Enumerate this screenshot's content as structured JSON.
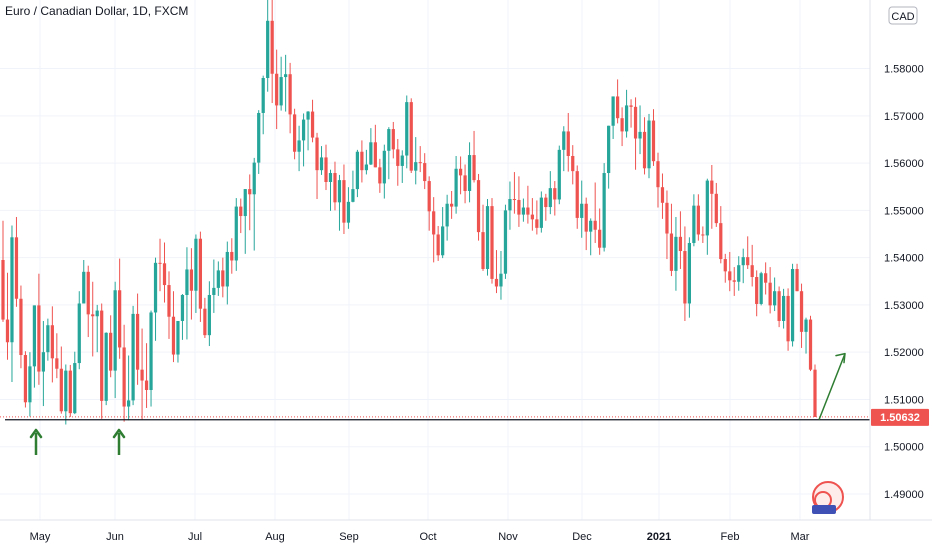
{
  "header": {
    "title": "Euro / Canadian Dollar, 1D, FXCM",
    "currency_badge": "CAD"
  },
  "colors": {
    "up": "#26a69a",
    "down": "#ef5350",
    "support": "#131722",
    "arrow": "#2e7d32",
    "price_tag": "#ef5350"
  },
  "price_tag": {
    "value": 1.50632,
    "label": "1.50632"
  },
  "chart_data": {
    "type": "candlestick",
    "title": "Euro / Canadian Dollar, 1D, FXCM",
    "ylim": [
      1.4845,
      1.5945
    ],
    "y_ticks": [
      "1.49000",
      "1.50000",
      "1.51000",
      "1.52000",
      "1.53000",
      "1.54000",
      "1.55000",
      "1.56000",
      "1.57000",
      "1.58000"
    ],
    "x_ticks": [
      "May",
      "Jun",
      "Jul",
      "Aug",
      "Sep",
      "Oct",
      "Nov",
      "Dec",
      "2021",
      "Feb",
      "Mar"
    ],
    "grid": true,
    "series": [
      {
        "values": [
          [
            1.5395,
            1.5478,
            1.5264,
            1.5269
          ],
          [
            1.5269,
            1.5368,
            1.5184,
            1.5221
          ],
          [
            1.5221,
            1.5468,
            1.5137,
            1.5443
          ],
          [
            1.5443,
            1.5486,
            1.5296,
            1.5313
          ],
          [
            1.5313,
            1.5341,
            1.5166,
            1.5194
          ],
          [
            1.5194,
            1.5202,
            1.5083,
            1.5094
          ],
          [
            1.5094,
            1.52,
            1.5064,
            1.517
          ],
          [
            1.517,
            1.5299,
            1.5125,
            1.5299
          ],
          [
            1.5299,
            1.5366,
            1.5131,
            1.5159
          ],
          [
            1.5159,
            1.5266,
            1.5086,
            1.52
          ],
          [
            1.52,
            1.5271,
            1.5182,
            1.5257
          ],
          [
            1.5257,
            1.5297,
            1.5136,
            1.5187
          ],
          [
            1.5187,
            1.524,
            1.5145,
            1.5165
          ],
          [
            1.5165,
            1.5212,
            1.507,
            1.5075
          ],
          [
            1.5075,
            1.5174,
            1.5047,
            1.5161
          ],
          [
            1.5161,
            1.5173,
            1.5063,
            1.5071
          ],
          [
            1.5071,
            1.5201,
            1.5069,
            1.5177
          ],
          [
            1.5177,
            1.5329,
            1.5164,
            1.5303
          ],
          [
            1.5303,
            1.5395,
            1.5303,
            1.537
          ],
          [
            1.537,
            1.5383,
            1.5232,
            1.528
          ],
          [
            1.528,
            1.5349,
            1.5191,
            1.5276
          ],
          [
            1.5276,
            1.53,
            1.52,
            1.5288
          ],
          [
            1.5288,
            1.5303,
            1.5059,
            1.5097
          ],
          [
            1.5097,
            1.5242,
            1.5088,
            1.5241
          ],
          [
            1.5241,
            1.5278,
            1.5147,
            1.5161
          ],
          [
            1.5161,
            1.5349,
            1.5103,
            1.5331
          ],
          [
            1.5331,
            1.5398,
            1.5186,
            1.521
          ],
          [
            1.521,
            1.5258,
            1.5053,
            1.5085
          ],
          [
            1.5085,
            1.5193,
            1.5056,
            1.5098
          ],
          [
            1.5098,
            1.5298,
            1.5088,
            1.5281
          ],
          [
            1.5281,
            1.5324,
            1.5131,
            1.5163
          ],
          [
            1.5163,
            1.525,
            1.5058,
            1.514
          ],
          [
            1.514,
            1.5219,
            1.5082,
            1.512
          ],
          [
            1.512,
            1.5288,
            1.5085,
            1.5284
          ],
          [
            1.5284,
            1.54,
            1.5224,
            1.5389
          ],
          [
            1.5389,
            1.544,
            1.5329,
            1.5388
          ],
          [
            1.5388,
            1.5432,
            1.5305,
            1.5342
          ],
          [
            1.5342,
            1.5371,
            1.5228,
            1.5275
          ],
          [
            1.5275,
            1.5329,
            1.5179,
            1.5195
          ],
          [
            1.5195,
            1.5266,
            1.5178,
            1.5266
          ],
          [
            1.5266,
            1.5323,
            1.5226,
            1.5321
          ],
          [
            1.5321,
            1.5422,
            1.5227,
            1.5375
          ],
          [
            1.5375,
            1.542,
            1.5269,
            1.533
          ],
          [
            1.533,
            1.5449,
            1.5283,
            1.544
          ],
          [
            1.544,
            1.5455,
            1.5264,
            1.5292
          ],
          [
            1.5292,
            1.5315,
            1.523,
            1.5236
          ],
          [
            1.5236,
            1.535,
            1.5213,
            1.5321
          ],
          [
            1.5321,
            1.5396,
            1.5283,
            1.5336
          ],
          [
            1.5336,
            1.5392,
            1.5319,
            1.5373
          ],
          [
            1.5373,
            1.54,
            1.5316,
            1.5339
          ],
          [
            1.5339,
            1.5434,
            1.5301,
            1.5412
          ],
          [
            1.5412,
            1.5441,
            1.5366,
            1.5394
          ],
          [
            1.5394,
            1.5526,
            1.5372,
            1.5508
          ],
          [
            1.5508,
            1.5525,
            1.5452,
            1.5488
          ],
          [
            1.5488,
            1.5545,
            1.5408,
            1.5545
          ],
          [
            1.5545,
            1.5576,
            1.5458,
            1.5534
          ],
          [
            1.5534,
            1.5611,
            1.5415,
            1.5601
          ],
          [
            1.5601,
            1.5712,
            1.5577,
            1.5706
          ],
          [
            1.5706,
            1.5785,
            1.5661,
            1.578
          ],
          [
            1.578,
            1.5981,
            1.5751,
            1.5901
          ],
          [
            1.5901,
            1.595,
            1.5727,
            1.5789
          ],
          [
            1.5789,
            1.584,
            1.5672,
            1.5722
          ],
          [
            1.5722,
            1.5825,
            1.5711,
            1.5782
          ],
          [
            1.5782,
            1.5829,
            1.5709,
            1.5788
          ],
          [
            1.5788,
            1.5812,
            1.5663,
            1.5703
          ],
          [
            1.5703,
            1.5715,
            1.5608,
            1.5624
          ],
          [
            1.5624,
            1.5679,
            1.5583,
            1.5648
          ],
          [
            1.5648,
            1.5705,
            1.5593,
            1.5692
          ],
          [
            1.5692,
            1.571,
            1.5627,
            1.5709
          ],
          [
            1.5709,
            1.5734,
            1.5644,
            1.5654
          ],
          [
            1.5654,
            1.5664,
            1.5524,
            1.5585
          ],
          [
            1.5585,
            1.5636,
            1.5575,
            1.5612
          ],
          [
            1.5612,
            1.5639,
            1.5543,
            1.556
          ],
          [
            1.556,
            1.5586,
            1.5499,
            1.5579
          ],
          [
            1.5579,
            1.5603,
            1.55,
            1.5517
          ],
          [
            1.5517,
            1.5575,
            1.5457,
            1.5564
          ],
          [
            1.5564,
            1.5597,
            1.545,
            1.5474
          ],
          [
            1.5474,
            1.5549,
            1.5461,
            1.5518
          ],
          [
            1.5518,
            1.5584,
            1.5517,
            1.5545
          ],
          [
            1.5545,
            1.5628,
            1.5528,
            1.5624
          ],
          [
            1.5624,
            1.5648,
            1.5559,
            1.5585
          ],
          [
            1.5585,
            1.5628,
            1.5576,
            1.5597
          ],
          [
            1.5597,
            1.5674,
            1.5596,
            1.5644
          ],
          [
            1.5644,
            1.5681,
            1.5591,
            1.5591
          ],
          [
            1.5591,
            1.5609,
            1.5537,
            1.5557
          ],
          [
            1.5557,
            1.5639,
            1.5525,
            1.5626
          ],
          [
            1.5626,
            1.5676,
            1.5566,
            1.5672
          ],
          [
            1.5672,
            1.5687,
            1.561,
            1.5629
          ],
          [
            1.5629,
            1.5651,
            1.5552,
            1.5594
          ],
          [
            1.5594,
            1.5627,
            1.5558,
            1.5616
          ],
          [
            1.5616,
            1.5743,
            1.5589,
            1.5729
          ],
          [
            1.5729,
            1.5737,
            1.5579,
            1.5584
          ],
          [
            1.5584,
            1.5655,
            1.5555,
            1.5602
          ],
          [
            1.5602,
            1.5636,
            1.5581,
            1.56
          ],
          [
            1.56,
            1.5621,
            1.5545,
            1.5562
          ],
          [
            1.5562,
            1.5572,
            1.5457,
            1.5498
          ],
          [
            1.5498,
            1.5528,
            1.539,
            1.5449
          ],
          [
            1.5449,
            1.5467,
            1.5393,
            1.5405
          ],
          [
            1.5405,
            1.5507,
            1.5399,
            1.5466
          ],
          [
            1.5466,
            1.5533,
            1.5436,
            1.5514
          ],
          [
            1.5514,
            1.5541,
            1.5482,
            1.5508
          ],
          [
            1.5508,
            1.5615,
            1.5493,
            1.5588
          ],
          [
            1.5588,
            1.5614,
            1.5534,
            1.5574
          ],
          [
            1.5574,
            1.5597,
            1.5515,
            1.5541
          ],
          [
            1.5541,
            1.5644,
            1.5517,
            1.5617
          ],
          [
            1.5617,
            1.5668,
            1.5559,
            1.5564
          ],
          [
            1.5564,
            1.5577,
            1.5436,
            1.5454
          ],
          [
            1.5454,
            1.5512,
            1.5372,
            1.5376
          ],
          [
            1.5376,
            1.5524,
            1.5362,
            1.5509
          ],
          [
            1.5509,
            1.5526,
            1.5345,
            1.5355
          ],
          [
            1.5355,
            1.5416,
            1.5325,
            1.5339
          ],
          [
            1.5339,
            1.5414,
            1.5311,
            1.5366
          ],
          [
            1.5366,
            1.5512,
            1.5355,
            1.55
          ],
          [
            1.55,
            1.5561,
            1.5459,
            1.5524
          ],
          [
            1.5524,
            1.5581,
            1.5493,
            1.5522
          ],
          [
            1.5522,
            1.5572,
            1.5465,
            1.5491
          ],
          [
            1.5491,
            1.5525,
            1.5476,
            1.5506
          ],
          [
            1.5506,
            1.5552,
            1.5472,
            1.5491
          ],
          [
            1.5491,
            1.5526,
            1.5457,
            1.5481
          ],
          [
            1.5481,
            1.5521,
            1.5449,
            1.5463
          ],
          [
            1.5463,
            1.554,
            1.5453,
            1.5527
          ],
          [
            1.5527,
            1.5535,
            1.5478,
            1.5507
          ],
          [
            1.5507,
            1.5583,
            1.5492,
            1.5547
          ],
          [
            1.5547,
            1.5562,
            1.5489,
            1.5523
          ],
          [
            1.5523,
            1.5637,
            1.5513,
            1.5628
          ],
          [
            1.5628,
            1.5678,
            1.5583,
            1.5667
          ],
          [
            1.5667,
            1.5706,
            1.5582,
            1.5615
          ],
          [
            1.5615,
            1.5638,
            1.5555,
            1.5583
          ],
          [
            1.5583,
            1.5595,
            1.5461,
            1.5484
          ],
          [
            1.5484,
            1.5563,
            1.5442,
            1.5514
          ],
          [
            1.5514,
            1.5527,
            1.5416,
            1.5455
          ],
          [
            1.5455,
            1.5483,
            1.5405,
            1.5478
          ],
          [
            1.5478,
            1.5559,
            1.5431,
            1.5459
          ],
          [
            1.5459,
            1.5504,
            1.5406,
            1.5421
          ],
          [
            1.5421,
            1.56,
            1.5413,
            1.5579
          ],
          [
            1.5579,
            1.5679,
            1.5546,
            1.5679
          ],
          [
            1.5679,
            1.5741,
            1.5651,
            1.5741
          ],
          [
            1.5741,
            1.5777,
            1.5684,
            1.5695
          ],
          [
            1.5695,
            1.5718,
            1.5636,
            1.5667
          ],
          [
            1.5667,
            1.5755,
            1.5654,
            1.5722
          ],
          [
            1.5722,
            1.5735,
            1.5675,
            1.5719
          ],
          [
            1.5719,
            1.5739,
            1.5586,
            1.5652
          ],
          [
            1.5652,
            1.5722,
            1.5619,
            1.5666
          ],
          [
            1.5666,
            1.5697,
            1.5576,
            1.5589
          ],
          [
            1.5589,
            1.5704,
            1.5568,
            1.569
          ],
          [
            1.569,
            1.5714,
            1.5594,
            1.5604
          ],
          [
            1.5604,
            1.5622,
            1.5506,
            1.5549
          ],
          [
            1.5549,
            1.5578,
            1.5482,
            1.5516
          ],
          [
            1.5516,
            1.5542,
            1.5397,
            1.5451
          ],
          [
            1.5451,
            1.5514,
            1.5361,
            1.5372
          ],
          [
            1.5372,
            1.5486,
            1.533,
            1.5444
          ],
          [
            1.5444,
            1.5498,
            1.5376,
            1.5414
          ],
          [
            1.5414,
            1.5466,
            1.5266,
            1.5303
          ],
          [
            1.5303,
            1.5443,
            1.5273,
            1.5431
          ],
          [
            1.5431,
            1.5534,
            1.5424,
            1.551
          ],
          [
            1.551,
            1.5534,
            1.5436,
            1.5449
          ],
          [
            1.5449,
            1.5466,
            1.5431,
            1.5447
          ],
          [
            1.5447,
            1.5567,
            1.5406,
            1.5563
          ],
          [
            1.5563,
            1.5596,
            1.5461,
            1.5535
          ],
          [
            1.5535,
            1.5558,
            1.5465,
            1.5473
          ],
          [
            1.5473,
            1.5509,
            1.5388,
            1.5397
          ],
          [
            1.5397,
            1.5408,
            1.5347,
            1.5371
          ],
          [
            1.5371,
            1.5412,
            1.5329,
            1.5352
          ],
          [
            1.5352,
            1.538,
            1.5319,
            1.5349
          ],
          [
            1.5349,
            1.5403,
            1.533,
            1.5384
          ],
          [
            1.5384,
            1.5419,
            1.5346,
            1.5401
          ],
          [
            1.5401,
            1.5445,
            1.5376,
            1.5384
          ],
          [
            1.5384,
            1.5427,
            1.5339,
            1.5359
          ],
          [
            1.5359,
            1.5373,
            1.5276,
            1.5302
          ],
          [
            1.5302,
            1.537,
            1.5299,
            1.5367
          ],
          [
            1.5367,
            1.539,
            1.5322,
            1.5347
          ],
          [
            1.5347,
            1.538,
            1.5282,
            1.5299
          ],
          [
            1.5299,
            1.5358,
            1.5287,
            1.5329
          ],
          [
            1.5329,
            1.5339,
            1.5253,
            1.5266
          ],
          [
            1.5266,
            1.5334,
            1.525,
            1.5319
          ],
          [
            1.5319,
            1.5335,
            1.5203,
            1.5223
          ],
          [
            1.5223,
            1.5387,
            1.5212,
            1.5376
          ],
          [
            1.5376,
            1.5387,
            1.5329,
            1.5329
          ],
          [
            1.5329,
            1.5345,
            1.5209,
            1.5243
          ],
          [
            1.5243,
            1.5273,
            1.5197,
            1.5269
          ],
          [
            1.5269,
            1.5277,
            1.516,
            1.5163
          ],
          [
            1.5163,
            1.5174,
            1.5063,
            1.5063
          ]
        ]
      }
    ],
    "annotations": {
      "support_level": 1.5057,
      "up_arrow_from": 1.5057,
      "up_arrow_to": 1.5197
    }
  }
}
